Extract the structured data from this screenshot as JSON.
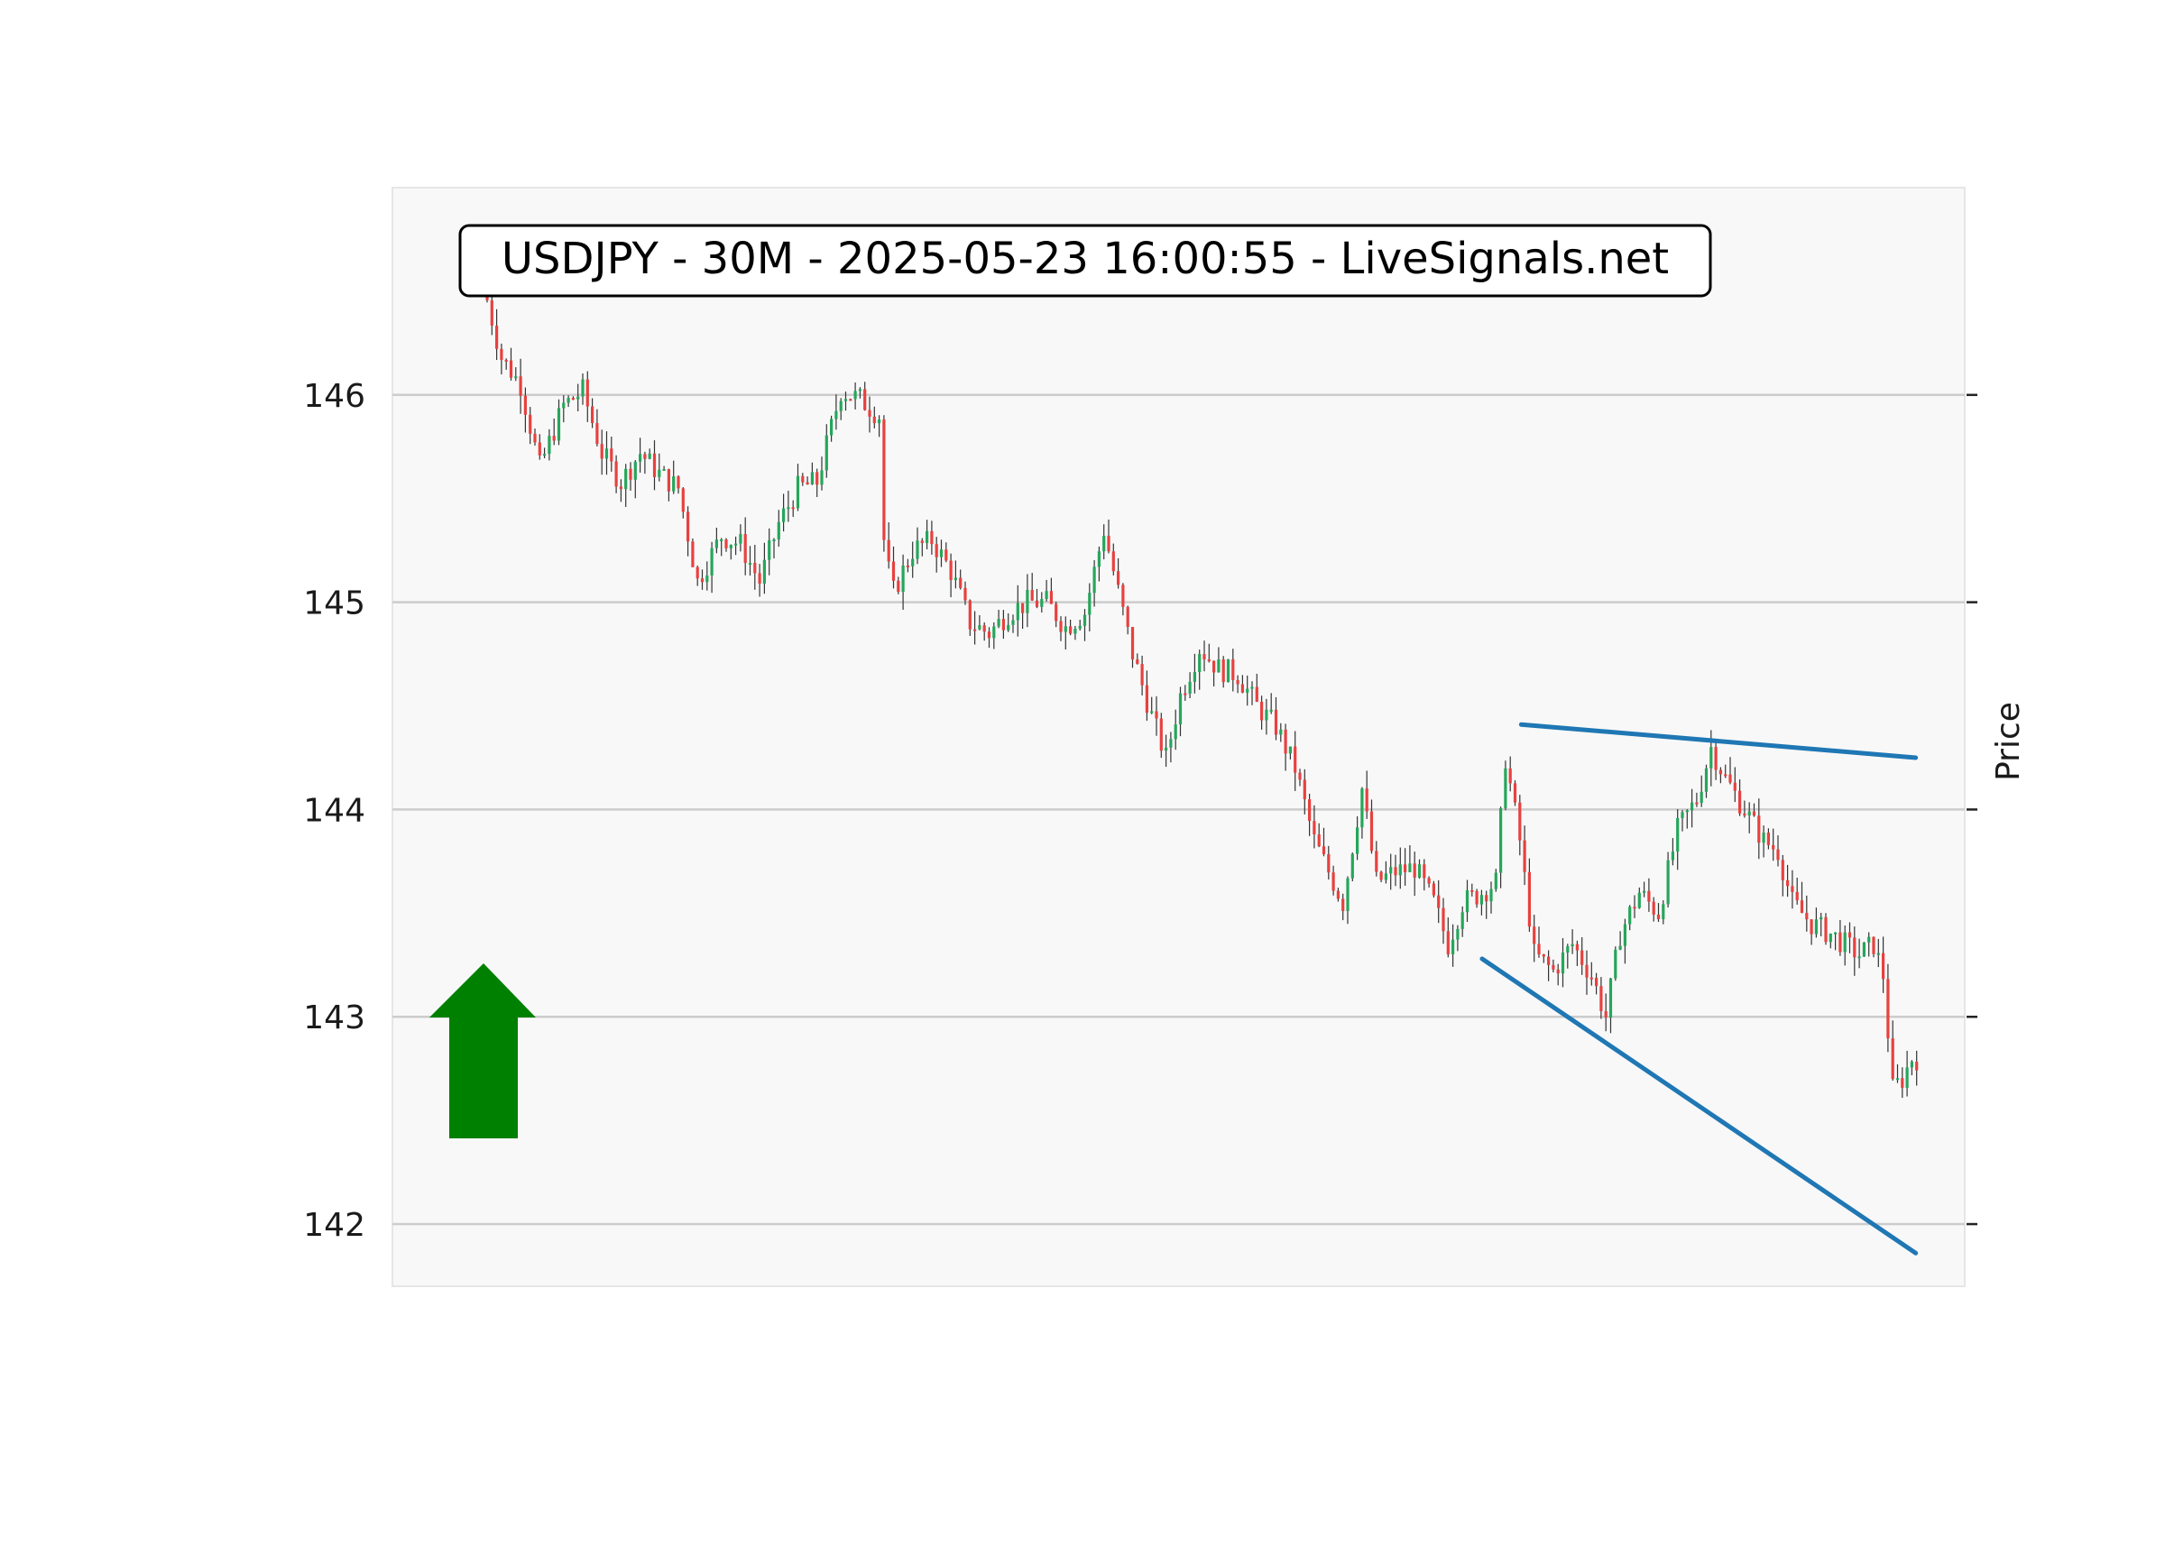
{
  "chart_data": {
    "type": "candlestick",
    "title": "USDJPY - 30M - 2025-05-23 16:00:55 - LiveSignals.net",
    "ylabel": "Price",
    "ylim": [
      141.7,
      147.0
    ],
    "yticks": [
      142,
      143,
      144,
      145,
      146
    ],
    "grid": "horizontal",
    "colors": {
      "up": "#26a65b",
      "down": "#e8413f",
      "wick": "#333333",
      "trendline": "#1f77b4",
      "signal_arrow": "#008000",
      "plot_bg": "#f8f8f8",
      "grid": "#cccccc"
    },
    "price_path": [
      [
        0,
        146.55
      ],
      [
        4,
        146.18
      ],
      [
        8,
        146.05
      ],
      [
        12,
        145.65
      ],
      [
        17,
        145.95
      ],
      [
        21,
        146.02
      ],
      [
        25,
        145.72
      ],
      [
        29,
        145.58
      ],
      [
        33,
        145.72
      ],
      [
        37,
        145.62
      ],
      [
        41,
        145.55
      ],
      [
        45,
        145.1
      ],
      [
        50,
        145.32
      ],
      [
        54,
        145.28
      ],
      [
        58,
        145.1
      ],
      [
        62,
        145.38
      ],
      [
        66,
        145.55
      ],
      [
        70,
        145.58
      ],
      [
        75,
        146.02
      ],
      [
        79,
        145.98
      ],
      [
        83,
        145.9
      ],
      [
        83.5,
        145.3
      ],
      [
        86,
        145.05
      ],
      [
        90,
        145.25
      ],
      [
        94,
        145.3
      ],
      [
        98,
        145.15
      ],
      [
        102,
        144.9
      ],
      [
        106,
        144.85
      ],
      [
        110,
        144.95
      ],
      [
        114,
        145.0
      ],
      [
        118,
        145.0
      ],
      [
        122,
        144.88
      ],
      [
        126,
        144.95
      ],
      [
        130,
        145.35
      ],
      [
        133,
        145.05
      ],
      [
        136,
        144.75
      ],
      [
        140,
        144.45
      ],
      [
        143,
        144.25
      ],
      [
        146,
        144.55
      ],
      [
        150,
        144.78
      ],
      [
        154,
        144.68
      ],
      [
        158,
        144.65
      ],
      [
        162,
        144.5
      ],
      [
        166,
        144.4
      ],
      [
        170,
        144.2
      ],
      [
        174,
        143.85
      ],
      [
        177,
        143.7
      ],
      [
        180,
        143.55
      ],
      [
        184,
        144.1
      ],
      [
        187,
        143.65
      ],
      [
        191,
        143.7
      ],
      [
        195,
        143.72
      ],
      [
        199,
        143.55
      ],
      [
        202,
        143.35
      ],
      [
        205,
        143.55
      ],
      [
        209,
        143.6
      ],
      [
        212,
        143.65
      ],
      [
        214,
        144.25
      ],
      [
        217,
        143.85
      ],
      [
        220,
        143.3
      ],
      [
        224,
        143.22
      ],
      [
        228,
        143.35
      ],
      [
        232,
        143.2
      ],
      [
        235,
        143.0
      ],
      [
        238,
        143.4
      ],
      [
        242,
        143.6
      ],
      [
        246,
        143.5
      ],
      [
        250,
        143.9
      ],
      [
        254,
        144.05
      ],
      [
        257,
        144.3
      ],
      [
        260,
        144.15
      ],
      [
        264,
        144.0
      ],
      [
        268,
        143.85
      ],
      [
        271,
        143.8
      ],
      [
        274,
        143.55
      ],
      [
        278,
        143.45
      ],
      [
        282,
        143.4
      ],
      [
        285,
        143.35
      ],
      [
        288,
        143.3
      ],
      [
        291,
        143.35
      ],
      [
        293,
        143.2
      ],
      [
        295,
        142.65
      ],
      [
        297,
        142.7
      ],
      [
        299,
        142.8
      ]
    ],
    "trendlines": [
      {
        "name": "resistance",
        "points": [
          [
            216.3,
            144.41
          ],
          [
            298.8,
            144.25
          ]
        ]
      },
      {
        "name": "support",
        "points": [
          [
            208.1,
            143.28
          ],
          [
            298.8,
            141.86
          ]
        ]
      }
    ],
    "signal": "up-arrow"
  }
}
